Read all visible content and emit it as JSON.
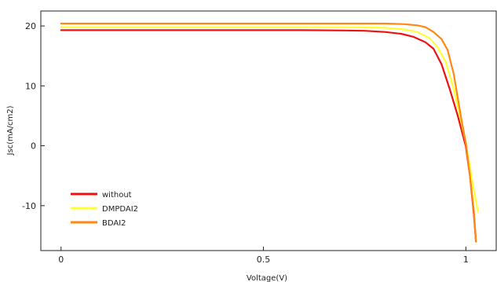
{
  "chart_data": {
    "type": "line",
    "title": "",
    "xlabel": "Voltage(V)",
    "ylabel": "Jsc(mA/cm2)",
    "xlim": [
      -0.05,
      1.075
    ],
    "ylim": [
      -17.5,
      22.5
    ],
    "x_ticks": [
      0,
      0.5,
      1
    ],
    "x_tick_labels": [
      "0",
      "0.5",
      "1"
    ],
    "y_ticks": [
      -10,
      0,
      10,
      20
    ],
    "y_tick_labels": [
      "-10",
      "0",
      "10",
      "20"
    ],
    "grid": false,
    "legend_position": "bottom-left",
    "series": [
      {
        "name": "without",
        "color": "#ee1111",
        "x": [
          0,
          0.2,
          0.4,
          0.6,
          0.7,
          0.75,
          0.8,
          0.84,
          0.87,
          0.9,
          0.92,
          0.94,
          0.96,
          0.98,
          1.0,
          1.01,
          1.02,
          1.025
        ],
        "y": [
          19.3,
          19.3,
          19.3,
          19.3,
          19.25,
          19.2,
          19.0,
          18.7,
          18.2,
          17.3,
          16.2,
          13.6,
          9.5,
          5.0,
          -0.1,
          -5.0,
          -11.5,
          -16.0
        ]
      },
      {
        "name": "DMPDAI2",
        "color": "#ffff33",
        "x": [
          0,
          0.2,
          0.4,
          0.6,
          0.7,
          0.75,
          0.8,
          0.85,
          0.88,
          0.91,
          0.93,
          0.95,
          0.97,
          0.99,
          1.0,
          1.01,
          1.02,
          1.03
        ],
        "y": [
          19.8,
          19.8,
          19.8,
          19.8,
          19.78,
          19.75,
          19.7,
          19.4,
          19.0,
          18.0,
          16.5,
          14.0,
          9.5,
          3.5,
          0.5,
          -3.5,
          -7.5,
          -11.0
        ]
      },
      {
        "name": "BDAI2",
        "color": "#ff8811",
        "x": [
          0,
          0.2,
          0.4,
          0.6,
          0.7,
          0.8,
          0.85,
          0.88,
          0.9,
          0.92,
          0.94,
          0.955,
          0.97,
          0.98,
          0.99,
          1.0,
          1.01,
          1.02,
          1.025
        ],
        "y": [
          20.4,
          20.4,
          20.4,
          20.4,
          20.4,
          20.4,
          20.3,
          20.1,
          19.8,
          19.0,
          17.8,
          16.0,
          12.0,
          8.0,
          4.0,
          0.5,
          -5.0,
          -11.0,
          -16.0
        ]
      }
    ]
  }
}
